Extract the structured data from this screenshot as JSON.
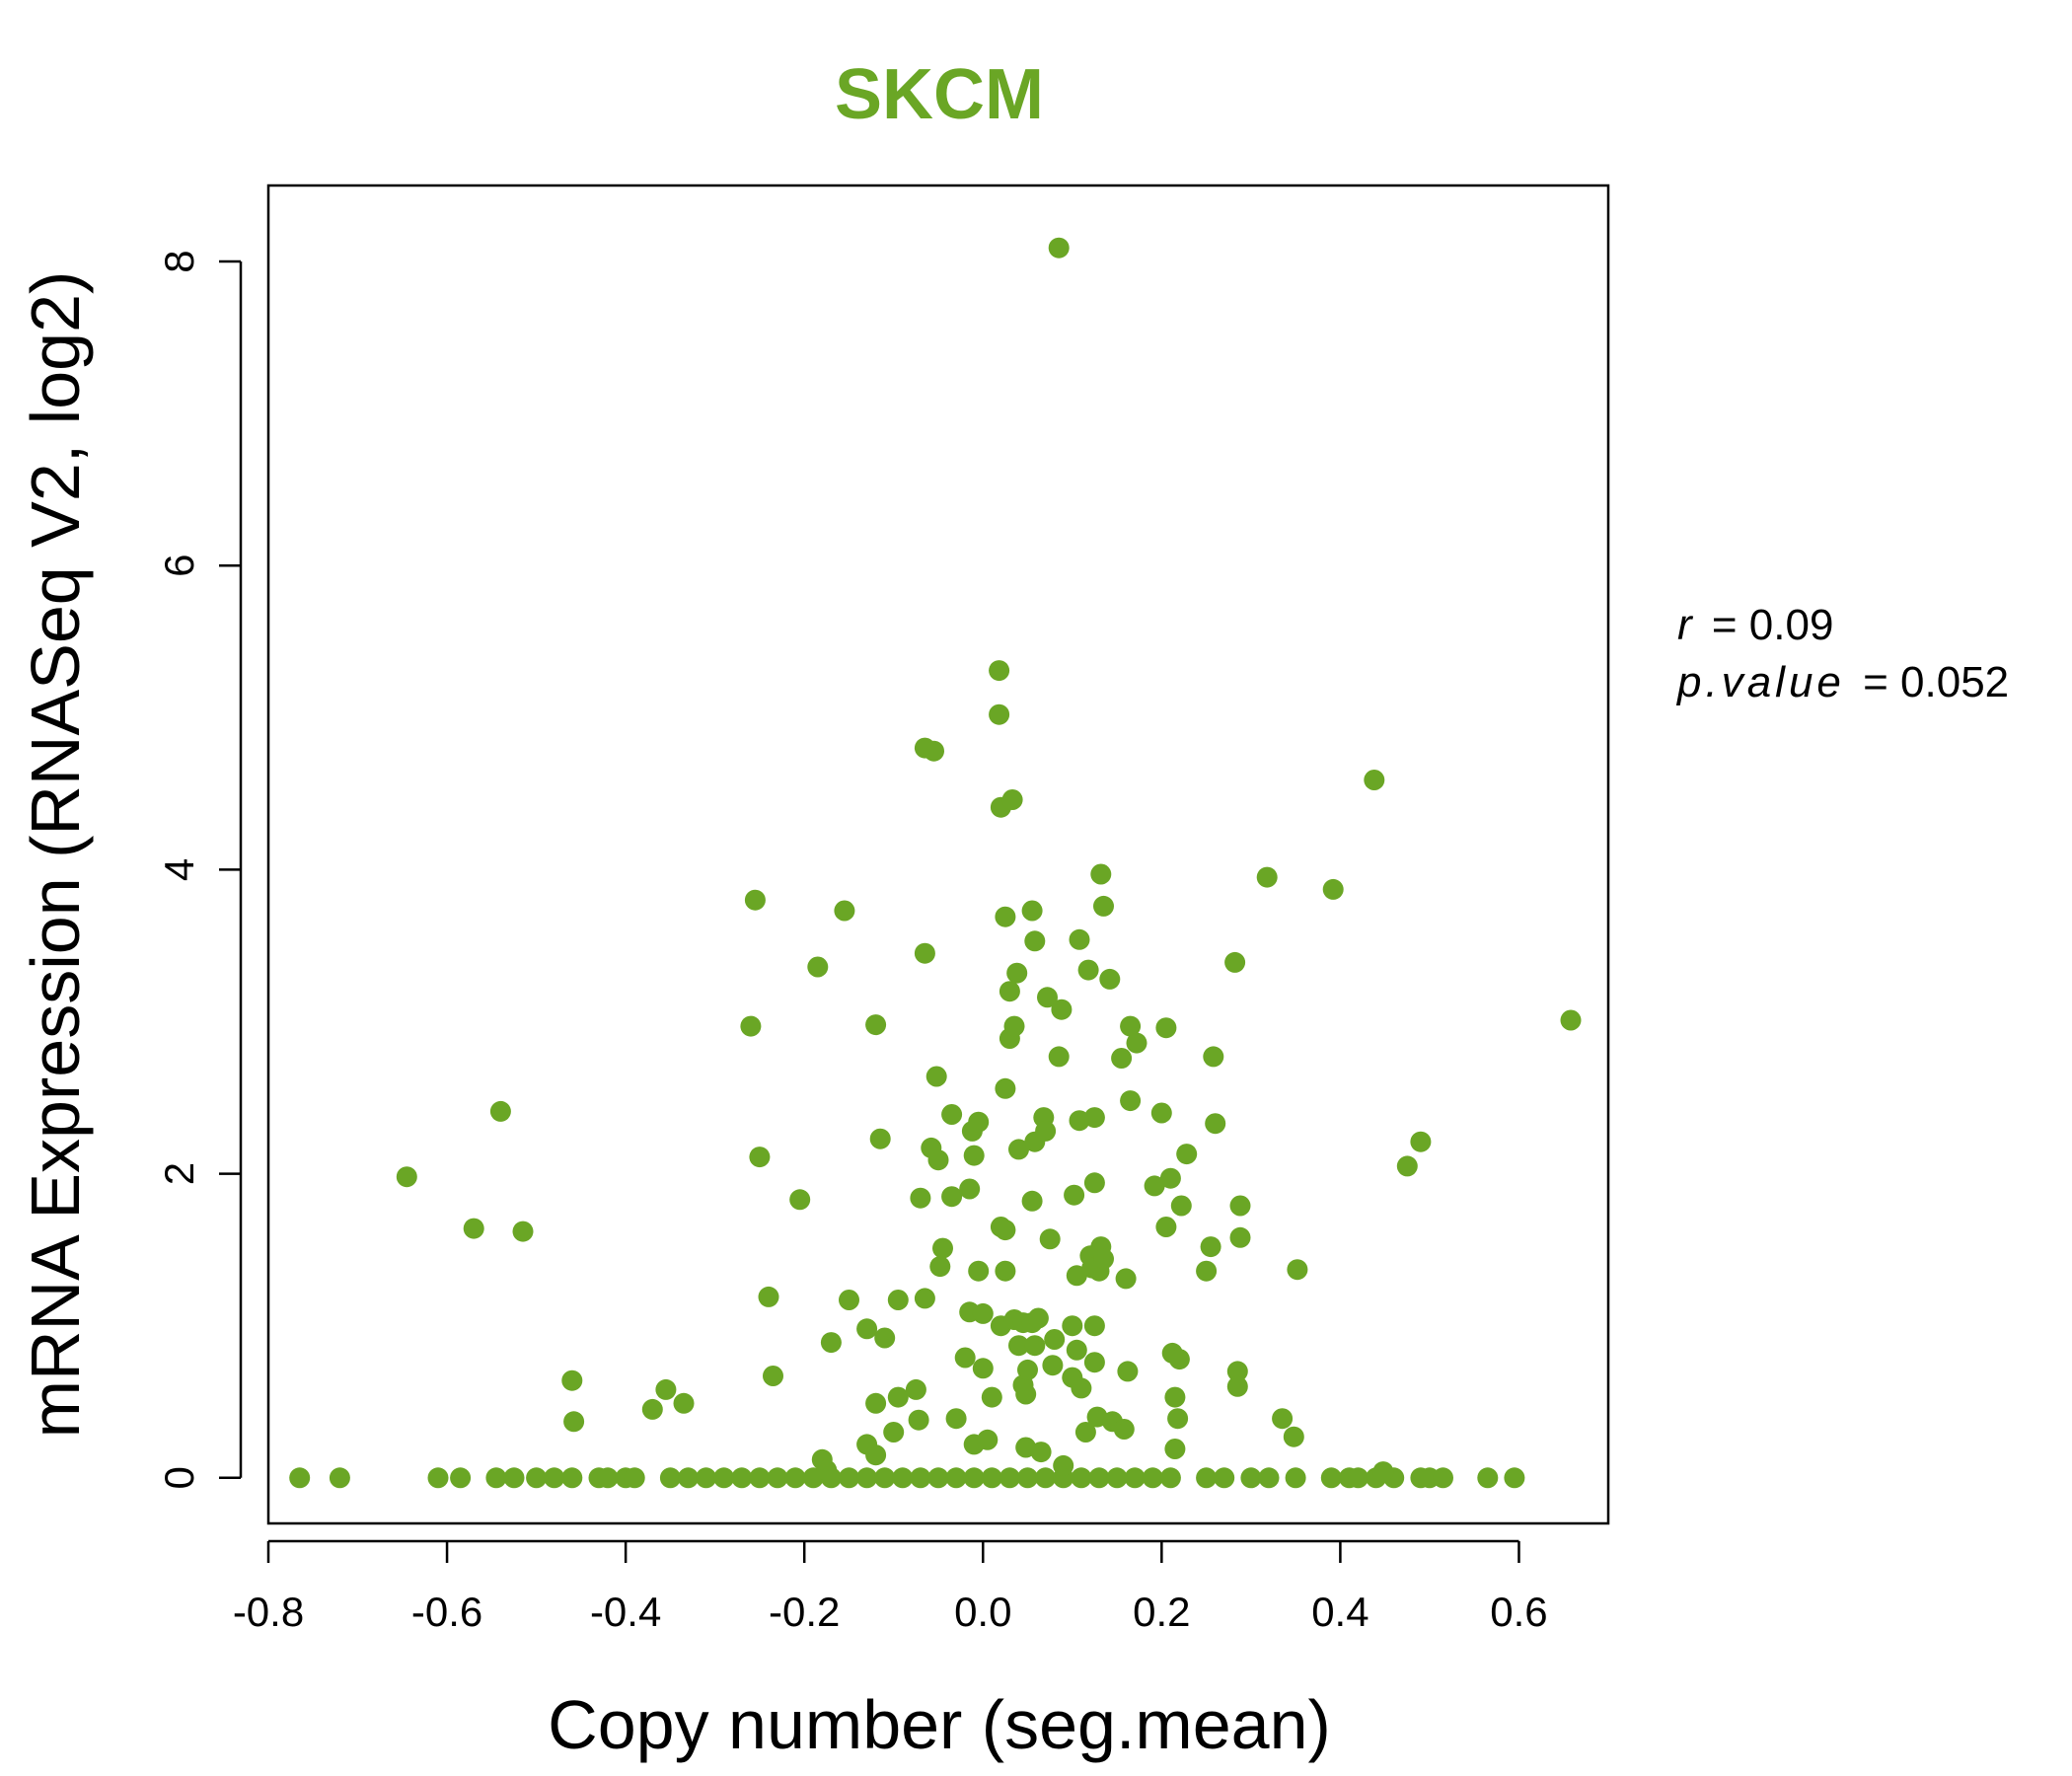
{
  "chart_data": {
    "type": "scatter",
    "title": "SKCM",
    "xlabel": "Copy number (seg.mean)",
    "ylabel": "mRNA Expression (RNASeq V2, log2)",
    "xlim": [
      -0.8,
      0.7
    ],
    "ylim": [
      -0.3,
      8.5
    ],
    "x_ticks": [
      -0.8,
      -0.6,
      -0.4,
      -0.2,
      0.0,
      0.2,
      0.4,
      0.6
    ],
    "x_tick_labels": [
      "-0.8",
      "-0.6",
      "-0.4",
      "-0.2",
      "0.0",
      "0.2",
      "0.4",
      "0.6"
    ],
    "y_ticks": [
      0,
      2,
      4,
      6,
      8
    ],
    "y_tick_labels": [
      "0",
      "2",
      "4",
      "6",
      "8"
    ],
    "grid": false,
    "legend": "none",
    "color": "#6aa625",
    "annotations": {
      "r_label": "r",
      "r_value": "= 0.09",
      "p_label": "p.value",
      "p_value": "= 0.052"
    },
    "points": [
      [
        -0.765,
        0
      ],
      [
        -0.72,
        0
      ],
      [
        -0.61,
        0
      ],
      [
        -0.585,
        0
      ],
      [
        -0.545,
        0
      ],
      [
        -0.525,
        0
      ],
      [
        -0.5,
        0
      ],
      [
        -0.48,
        0
      ],
      [
        -0.46,
        0
      ],
      [
        -0.43,
        0
      ],
      [
        -0.42,
        0
      ],
      [
        -0.4,
        0
      ],
      [
        -0.39,
        0
      ],
      [
        -0.35,
        0
      ],
      [
        -0.33,
        0
      ],
      [
        -0.31,
        0
      ],
      [
        -0.29,
        0
      ],
      [
        -0.27,
        0
      ],
      [
        -0.25,
        0
      ],
      [
        -0.23,
        0
      ],
      [
        -0.21,
        0
      ],
      [
        -0.19,
        0
      ],
      [
        -0.17,
        0
      ],
      [
        -0.15,
        0
      ],
      [
        -0.13,
        0
      ],
      [
        -0.11,
        0
      ],
      [
        -0.09,
        0
      ],
      [
        -0.07,
        0
      ],
      [
        -0.05,
        0
      ],
      [
        -0.03,
        0
      ],
      [
        -0.01,
        0
      ],
      [
        0.01,
        0
      ],
      [
        0.03,
        0
      ],
      [
        0.05,
        0
      ],
      [
        0.07,
        0
      ],
      [
        0.09,
        0
      ],
      [
        0.11,
        0
      ],
      [
        0.13,
        0
      ],
      [
        0.15,
        0
      ],
      [
        0.17,
        0
      ],
      [
        0.19,
        0
      ],
      [
        0.21,
        0
      ],
      [
        0.25,
        0
      ],
      [
        0.27,
        0
      ],
      [
        0.3,
        0
      ],
      [
        0.32,
        0
      ],
      [
        0.35,
        0
      ],
      [
        0.39,
        0
      ],
      [
        0.41,
        0
      ],
      [
        0.42,
        0
      ],
      [
        0.44,
        0
      ],
      [
        0.46,
        0
      ],
      [
        0.49,
        0
      ],
      [
        0.5,
        0
      ],
      [
        0.515,
        0
      ],
      [
        0.565,
        0
      ],
      [
        0.595,
        0
      ],
      [
        -0.645,
        1.98
      ],
      [
        -0.57,
        1.64
      ],
      [
        -0.54,
        2.41
      ],
      [
        -0.515,
        1.62
      ],
      [
        -0.46,
        0.64
      ],
      [
        -0.458,
        0.37
      ],
      [
        -0.37,
        0.45
      ],
      [
        -0.355,
        0.58
      ],
      [
        -0.335,
        0.49
      ],
      [
        -0.255,
        3.8
      ],
      [
        -0.26,
        2.97
      ],
      [
        -0.25,
        2.11
      ],
      [
        -0.24,
        1.19
      ],
      [
        -0.235,
        0.67
      ],
      [
        -0.205,
        1.83
      ],
      [
        -0.185,
        3.36
      ],
      [
        -0.18,
        0.12
      ],
      [
        -0.175,
        0.05
      ],
      [
        -0.17,
        0.89
      ],
      [
        -0.155,
        3.73
      ],
      [
        -0.15,
        1.17
      ],
      [
        -0.13,
        0.98
      ],
      [
        -0.13,
        0.22
      ],
      [
        -0.12,
        0.15
      ],
      [
        -0.12,
        0.49
      ],
      [
        -0.12,
        2.98
      ],
      [
        -0.115,
        2.23
      ],
      [
        -0.11,
        0.92
      ],
      [
        -0.1,
        0.3
      ],
      [
        -0.095,
        0.53
      ],
      [
        -0.095,
        1.17
      ],
      [
        -0.075,
        0.58
      ],
      [
        -0.072,
        0.38
      ],
      [
        -0.07,
        1.84
      ],
      [
        -0.065,
        4.8
      ],
      [
        -0.065,
        3.45
      ],
      [
        -0.065,
        1.18
      ],
      [
        -0.058,
        2.17
      ],
      [
        -0.055,
        4.78
      ],
      [
        -0.052,
        2.64
      ],
      [
        -0.05,
        2.09
      ],
      [
        -0.048,
        1.39
      ],
      [
        -0.045,
        1.51
      ],
      [
        -0.035,
        2.39
      ],
      [
        -0.035,
        1.85
      ],
      [
        -0.03,
        0.39
      ],
      [
        -0.02,
        0.79
      ],
      [
        -0.015,
        1.9
      ],
      [
        -0.015,
        1.09
      ],
      [
        -0.012,
        2.28
      ],
      [
        -0.01,
        2.12
      ],
      [
        -0.01,
        0.22
      ],
      [
        -0.005,
        2.34
      ],
      [
        -0.005,
        1.36
      ],
      [
        0.0,
        1.08
      ],
      [
        0.0,
        0.72
      ],
      [
        0.005,
        0.25
      ],
      [
        0.01,
        0.53
      ],
      [
        0.018,
        5.31
      ],
      [
        0.018,
        5.02
      ],
      [
        0.02,
        4.41
      ],
      [
        0.02,
        1.65
      ],
      [
        0.02,
        1.0
      ],
      [
        0.025,
        3.69
      ],
      [
        0.025,
        2.56
      ],
      [
        0.025,
        1.63
      ],
      [
        0.025,
        1.36
      ],
      [
        0.03,
        3.2
      ],
      [
        0.03,
        2.89
      ],
      [
        0.033,
        4.46
      ],
      [
        0.035,
        2.97
      ],
      [
        0.035,
        1.04
      ],
      [
        0.038,
        3.32
      ],
      [
        0.04,
        2.16
      ],
      [
        0.04,
        0.87
      ],
      [
        0.045,
        1.02
      ],
      [
        0.045,
        0.61
      ],
      [
        0.048,
        0.55
      ],
      [
        0.048,
        0.2
      ],
      [
        0.05,
        0.71
      ],
      [
        0.055,
        3.73
      ],
      [
        0.055,
        1.82
      ],
      [
        0.055,
        1.02
      ],
      [
        0.058,
        3.53
      ],
      [
        0.058,
        2.21
      ],
      [
        0.058,
        0.87
      ],
      [
        0.062,
        1.05
      ],
      [
        0.065,
        0.17
      ],
      [
        0.068,
        2.37
      ],
      [
        0.07,
        2.28
      ],
      [
        0.072,
        3.16
      ],
      [
        0.075,
        1.57
      ],
      [
        0.078,
        0.74
      ],
      [
        0.08,
        0.91
      ],
      [
        0.085,
        8.09
      ],
      [
        0.085,
        2.77
      ],
      [
        0.088,
        3.08
      ],
      [
        0.09,
        0.08
      ],
      [
        0.1,
        1.0
      ],
      [
        0.1,
        0.66
      ],
      [
        0.102,
        1.86
      ],
      [
        0.105,
        1.33
      ],
      [
        0.105,
        0.84
      ],
      [
        0.108,
        3.54
      ],
      [
        0.108,
        2.35
      ],
      [
        0.11,
        0.59
      ],
      [
        0.115,
        0.3
      ],
      [
        0.118,
        3.34
      ],
      [
        0.12,
        1.46
      ],
      [
        0.122,
        1.38
      ],
      [
        0.125,
        2.37
      ],
      [
        0.125,
        1.94
      ],
      [
        0.125,
        1.0
      ],
      [
        0.125,
        0.76
      ],
      [
        0.128,
        0.4
      ],
      [
        0.13,
        1.36
      ],
      [
        0.132,
        3.97
      ],
      [
        0.132,
        1.52
      ],
      [
        0.135,
        3.76
      ],
      [
        0.135,
        1.44
      ],
      [
        0.142,
        3.28
      ],
      [
        0.145,
        0.37
      ],
      [
        0.155,
        2.76
      ],
      [
        0.158,
        0.32
      ],
      [
        0.16,
        1.31
      ],
      [
        0.162,
        0.7
      ],
      [
        0.165,
        2.97
      ],
      [
        0.165,
        2.48
      ],
      [
        0.172,
        2.86
      ],
      [
        0.192,
        1.92
      ],
      [
        0.2,
        2.4
      ],
      [
        0.205,
        2.96
      ],
      [
        0.205,
        1.65
      ],
      [
        0.21,
        1.97
      ],
      [
        0.212,
        0.82
      ],
      [
        0.215,
        0.53
      ],
      [
        0.215,
        0.19
      ],
      [
        0.218,
        0.39
      ],
      [
        0.22,
        0.78
      ],
      [
        0.222,
        1.79
      ],
      [
        0.228,
        2.13
      ],
      [
        0.25,
        1.36
      ],
      [
        0.255,
        1.52
      ],
      [
        0.258,
        2.77
      ],
      [
        0.26,
        2.33
      ],
      [
        0.282,
        3.39
      ],
      [
        0.285,
        0.7
      ],
      [
        0.285,
        0.6
      ],
      [
        0.288,
        1.79
      ],
      [
        0.288,
        1.58
      ],
      [
        0.318,
        3.95
      ],
      [
        0.335,
        0.39
      ],
      [
        0.348,
        0.27
      ],
      [
        0.352,
        1.37
      ],
      [
        0.392,
        3.87
      ],
      [
        0.438,
        4.59
      ],
      [
        0.448,
        0.04
      ],
      [
        0.475,
        2.05
      ],
      [
        0.49,
        2.21
      ],
      [
        0.658,
        3.01
      ]
    ]
  }
}
